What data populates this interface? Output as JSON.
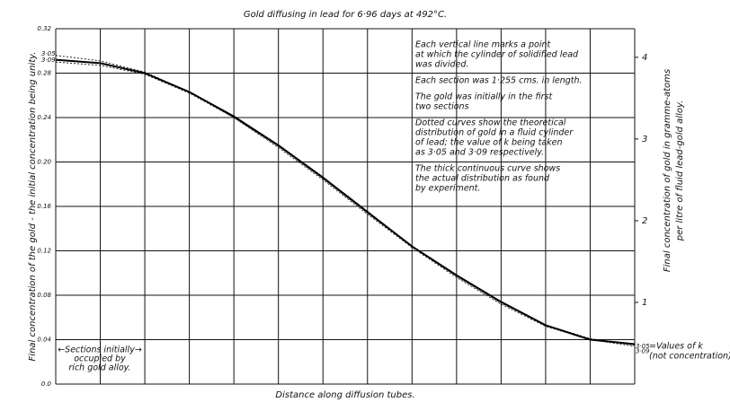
{
  "chart_data": {
    "type": "line",
    "title": "Gold diffusing in lead for 6·96 days at 492°C.",
    "x_label": "Distance along diffusion tubes.",
    "y_label": "Final concentration of the gold - the initial concentration being unity.",
    "y2_label": [
      "Final concentration of gold in gramme-atoms",
      "per litre of fluid lead-gold alloy."
    ],
    "x": [
      0,
      1,
      2,
      3,
      4,
      5,
      6,
      7,
      8,
      9,
      10,
      11,
      12,
      13
    ],
    "xlim": [
      0,
      13
    ],
    "ylim": [
      0,
      0.32
    ],
    "yticks": [
      {
        "value": 0,
        "label": "0.0"
      },
      0.04,
      0.08,
      0.12,
      0.16,
      {
        "value": 0.2,
        "label": "0.20"
      },
      0.24,
      0.28,
      0.32
    ],
    "y2lim": [
      0,
      4.35
    ],
    "y2ticks": [
      1,
      2,
      3,
      4
    ],
    "grid": true,
    "series": [
      {
        "name": "3·05",
        "color": "#222",
        "style": "dotted",
        "values": [
          0.296,
          0.291,
          0.281,
          0.263,
          0.24,
          0.213,
          0.184,
          0.153,
          0.123,
          0.096,
          0.072,
          0.052,
          0.04,
          0.034
        ]
      },
      {
        "name": "3·09",
        "color": "#222",
        "style": "dotted",
        "values": [
          0.29,
          0.287,
          0.279,
          0.262,
          0.24,
          0.214,
          0.185,
          0.154,
          0.124,
          0.097,
          0.073,
          0.053,
          0.041,
          0.035
        ]
      },
      {
        "name": "actual",
        "color": "#000",
        "style": "solid",
        "values": [
          0.292,
          0.289,
          0.28,
          0.263,
          0.241,
          0.215,
          0.186,
          0.155,
          0.124,
          0.098,
          0.074,
          0.053,
          0.04,
          0.036
        ]
      }
    ],
    "notes": [
      [
        "Each vertical line marks a point",
        "at which the cylinder of solidified lead",
        "was divided."
      ],
      [
        "Each section was 1·255 cms. in length."
      ],
      [
        "The gold was initially in the first",
        "two sections"
      ],
      [
        "Dotted curves show the theoretical",
        "distribution of gold in a fluid cylinder",
        "of lead; the value of k being taken",
        "as 3·05 and 3·09 respectively."
      ],
      [
        "The thick continuous curve shows",
        "the actual distribution as found",
        "by experiment."
      ]
    ],
    "section_note": [
      "←Sections initially→",
      "occupied by",
      "rich gold alloy."
    ],
    "k_note": [
      "=Values of k",
      "(not concentration)"
    ]
  }
}
